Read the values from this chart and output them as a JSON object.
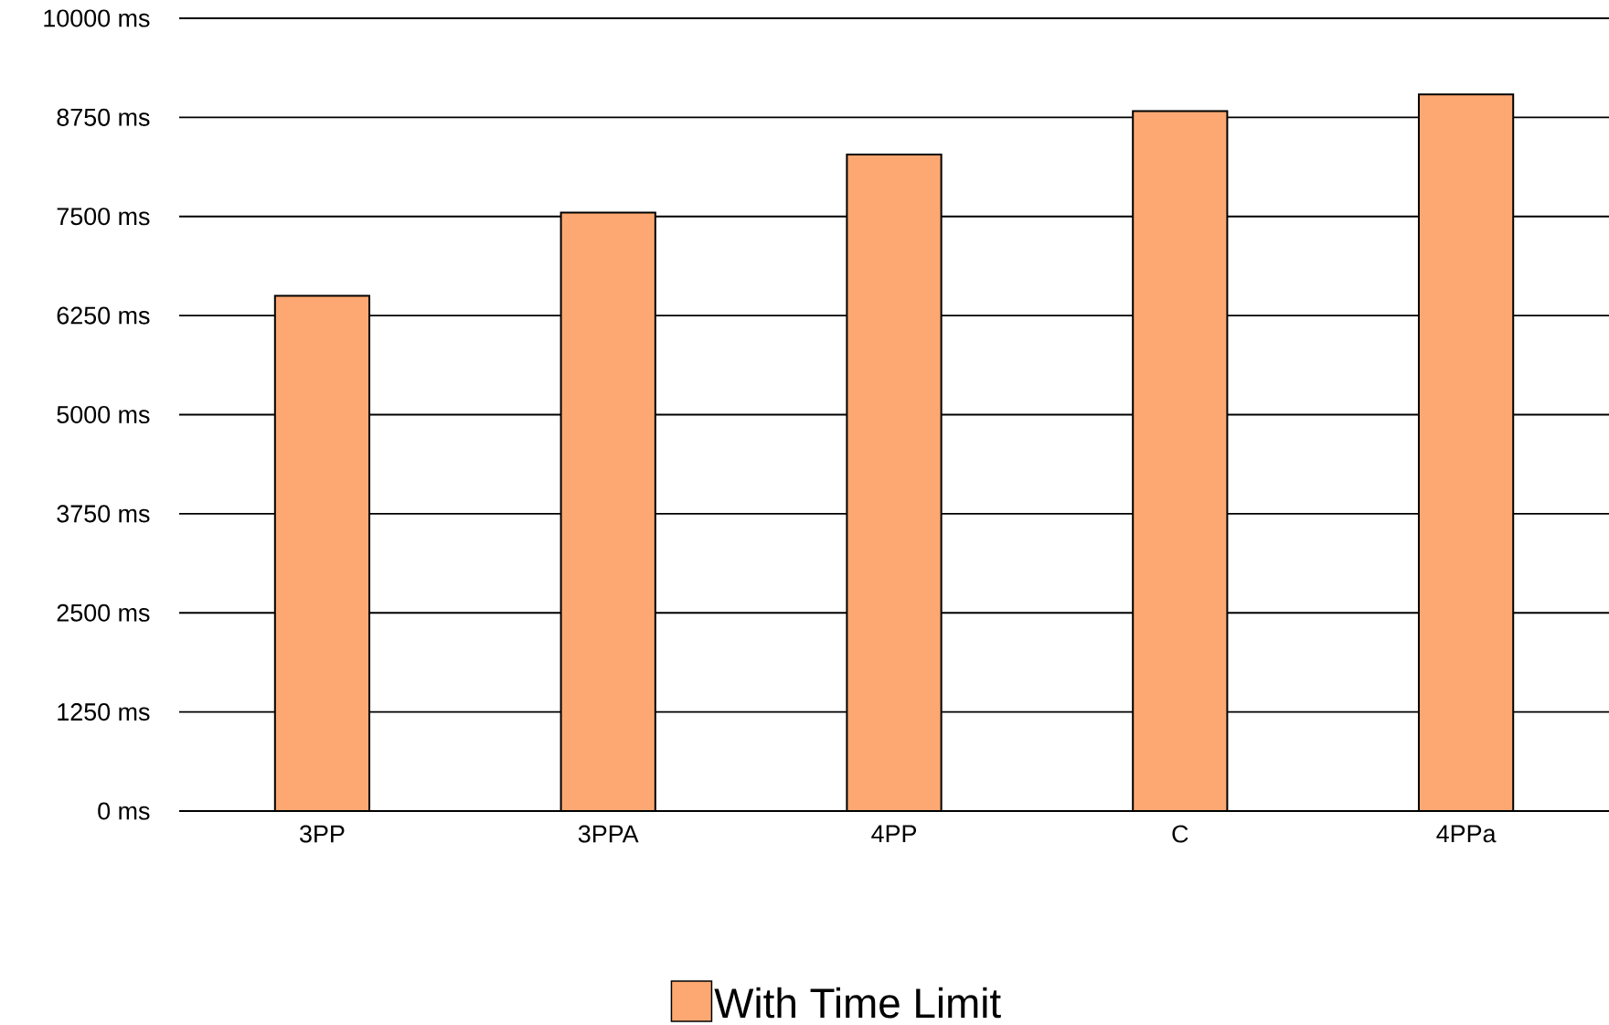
{
  "chart_data": {
    "type": "bar",
    "categories": [
      "3PP",
      "3PPA",
      "4PP",
      "C",
      "4PPa"
    ],
    "series": [
      {
        "name": "With Time Limit",
        "color": "#fda872",
        "values": [
          6500,
          7550,
          8280,
          8830,
          9040
        ]
      }
    ],
    "ylim": [
      0,
      10000
    ],
    "yticks": [
      {
        "value": 0,
        "label": "0 ms"
      },
      {
        "value": 1250,
        "label": "1250 ms"
      },
      {
        "value": 2500,
        "label": "2500 ms"
      },
      {
        "value": 3750,
        "label": "3750 ms"
      },
      {
        "value": 5000,
        "label": "5000 ms"
      },
      {
        "value": 6250,
        "label": "6250 ms"
      },
      {
        "value": 7500,
        "label": "7500 ms"
      },
      {
        "value": 8750,
        "label": "8750 ms"
      },
      {
        "value": 10000,
        "label": "10000 ms"
      }
    ],
    "grid": "y",
    "legend": "bottom"
  }
}
